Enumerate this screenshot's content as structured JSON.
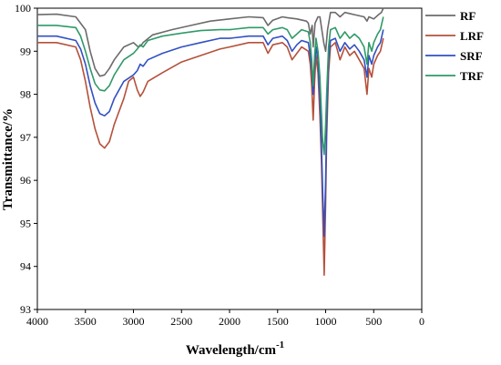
{
  "chart_data": {
    "type": "line",
    "title": "",
    "xlabel": "Wavelength/cm",
    "xlabel_superscript": "-1",
    "ylabel": "Transmittance/%",
    "xlim": [
      4000,
      0
    ],
    "ylim": [
      93,
      100
    ],
    "x_reversed": true,
    "x_ticks": [
      4000,
      3500,
      3000,
      2500,
      2000,
      1500,
      1000,
      500,
      0
    ],
    "y_ticks": [
      93,
      94,
      95,
      96,
      97,
      98,
      99,
      100
    ],
    "grid": false,
    "legend_position": "top-right",
    "series": [
      {
        "name": "RF",
        "color": "#6b6b6b",
        "points": [
          [
            4000,
            99.85
          ],
          [
            3800,
            99.86
          ],
          [
            3600,
            99.8
          ],
          [
            3500,
            99.5
          ],
          [
            3450,
            99.0
          ],
          [
            3400,
            98.6
          ],
          [
            3350,
            98.42
          ],
          [
            3300,
            98.45
          ],
          [
            3250,
            98.6
          ],
          [
            3200,
            98.8
          ],
          [
            3100,
            99.1
          ],
          [
            3000,
            99.2
          ],
          [
            2950,
            99.1
          ],
          [
            2920,
            99.13
          ],
          [
            2900,
            99.2
          ],
          [
            2800,
            99.38
          ],
          [
            2600,
            99.5
          ],
          [
            2400,
            99.6
          ],
          [
            2200,
            99.7
          ],
          [
            2000,
            99.75
          ],
          [
            1800,
            99.8
          ],
          [
            1650,
            99.78
          ],
          [
            1600,
            99.6
          ],
          [
            1550,
            99.72
          ],
          [
            1450,
            99.8
          ],
          [
            1400,
            99.78
          ],
          [
            1300,
            99.75
          ],
          [
            1200,
            99.7
          ],
          [
            1180,
            99.65
          ],
          [
            1160,
            99.4
          ],
          [
            1140,
            99.6
          ],
          [
            1130,
            99.1
          ],
          [
            1110,
            99.65
          ],
          [
            1080,
            99.8
          ],
          [
            1060,
            99.8
          ],
          [
            1040,
            99.5
          ],
          [
            1020,
            99.2
          ],
          [
            1000,
            99.0
          ],
          [
            980,
            99.5
          ],
          [
            950,
            99.9
          ],
          [
            900,
            99.9
          ],
          [
            850,
            99.8
          ],
          [
            800,
            99.9
          ],
          [
            700,
            99.85
          ],
          [
            600,
            99.8
          ],
          [
            570,
            99.7
          ],
          [
            550,
            99.8
          ],
          [
            500,
            99.75
          ],
          [
            450,
            99.85
          ],
          [
            420,
            99.9
          ],
          [
            400,
            100.0
          ]
        ]
      },
      {
        "name": "LRF",
        "color": "#b5503b",
        "points": [
          [
            4000,
            99.2
          ],
          [
            3800,
            99.2
          ],
          [
            3600,
            99.1
          ],
          [
            3550,
            98.8
          ],
          [
            3500,
            98.3
          ],
          [
            3450,
            97.7
          ],
          [
            3400,
            97.2
          ],
          [
            3350,
            96.85
          ],
          [
            3300,
            96.75
          ],
          [
            3250,
            96.9
          ],
          [
            3200,
            97.3
          ],
          [
            3100,
            97.9
          ],
          [
            3050,
            98.3
          ],
          [
            3000,
            98.4
          ],
          [
            2960,
            98.1
          ],
          [
            2930,
            97.95
          ],
          [
            2900,
            98.05
          ],
          [
            2850,
            98.3
          ],
          [
            2700,
            98.5
          ],
          [
            2500,
            98.75
          ],
          [
            2300,
            98.9
          ],
          [
            2100,
            99.05
          ],
          [
            2000,
            99.1
          ],
          [
            1800,
            99.2
          ],
          [
            1650,
            99.2
          ],
          [
            1600,
            98.95
          ],
          [
            1550,
            99.15
          ],
          [
            1450,
            99.2
          ],
          [
            1400,
            99.1
          ],
          [
            1350,
            98.8
          ],
          [
            1300,
            98.95
          ],
          [
            1250,
            99.1
          ],
          [
            1180,
            99.0
          ],
          [
            1160,
            98.7
          ],
          [
            1145,
            98.2
          ],
          [
            1130,
            97.4
          ],
          [
            1115,
            98.3
          ],
          [
            1100,
            98.9
          ],
          [
            1080,
            98.5
          ],
          [
            1060,
            97.5
          ],
          [
            1045,
            96.5
          ],
          [
            1030,
            95.2
          ],
          [
            1015,
            93.8
          ],
          [
            1000,
            95.5
          ],
          [
            990,
            97.0
          ],
          [
            970,
            98.5
          ],
          [
            950,
            99.1
          ],
          [
            900,
            99.2
          ],
          [
            850,
            98.8
          ],
          [
            800,
            99.1
          ],
          [
            750,
            98.9
          ],
          [
            700,
            99.0
          ],
          [
            650,
            98.8
          ],
          [
            600,
            98.6
          ],
          [
            570,
            98.0
          ],
          [
            550,
            98.6
          ],
          [
            520,
            98.4
          ],
          [
            500,
            98.7
          ],
          [
            460,
            98.9
          ],
          [
            430,
            99.0
          ],
          [
            400,
            99.3
          ]
        ]
      },
      {
        "name": "SRF",
        "color": "#3151c2",
        "points": [
          [
            4000,
            99.35
          ],
          [
            3800,
            99.35
          ],
          [
            3600,
            99.25
          ],
          [
            3550,
            99.05
          ],
          [
            3500,
            98.7
          ],
          [
            3450,
            98.2
          ],
          [
            3400,
            97.8
          ],
          [
            3350,
            97.55
          ],
          [
            3300,
            97.5
          ],
          [
            3250,
            97.6
          ],
          [
            3200,
            97.9
          ],
          [
            3100,
            98.3
          ],
          [
            3000,
            98.45
          ],
          [
            2960,
            98.55
          ],
          [
            2930,
            98.7
          ],
          [
            2900,
            98.65
          ],
          [
            2850,
            98.8
          ],
          [
            2700,
            98.95
          ],
          [
            2500,
            99.1
          ],
          [
            2300,
            99.2
          ],
          [
            2100,
            99.3
          ],
          [
            2000,
            99.3
          ],
          [
            1800,
            99.35
          ],
          [
            1650,
            99.35
          ],
          [
            1600,
            99.15
          ],
          [
            1550,
            99.3
          ],
          [
            1450,
            99.35
          ],
          [
            1400,
            99.25
          ],
          [
            1350,
            99.0
          ],
          [
            1300,
            99.15
          ],
          [
            1250,
            99.25
          ],
          [
            1180,
            99.2
          ],
          [
            1160,
            98.9
          ],
          [
            1145,
            98.6
          ],
          [
            1130,
            98.0
          ],
          [
            1115,
            98.7
          ],
          [
            1100,
            99.1
          ],
          [
            1080,
            98.8
          ],
          [
            1060,
            97.9
          ],
          [
            1045,
            96.9
          ],
          [
            1030,
            95.7
          ],
          [
            1015,
            94.7
          ],
          [
            1000,
            96.0
          ],
          [
            990,
            97.4
          ],
          [
            970,
            98.8
          ],
          [
            950,
            99.25
          ],
          [
            900,
            99.3
          ],
          [
            850,
            99.0
          ],
          [
            800,
            99.2
          ],
          [
            750,
            99.05
          ],
          [
            700,
            99.15
          ],
          [
            650,
            99.0
          ],
          [
            600,
            98.8
          ],
          [
            570,
            98.4
          ],
          [
            550,
            98.9
          ],
          [
            520,
            98.7
          ],
          [
            500,
            98.9
          ],
          [
            460,
            99.1
          ],
          [
            430,
            99.2
          ],
          [
            400,
            99.5
          ]
        ]
      },
      {
        "name": "TRF",
        "color": "#2f9a68",
        "points": [
          [
            4000,
            99.6
          ],
          [
            3800,
            99.6
          ],
          [
            3600,
            99.55
          ],
          [
            3550,
            99.35
          ],
          [
            3500,
            99.0
          ],
          [
            3450,
            98.6
          ],
          [
            3400,
            98.25
          ],
          [
            3350,
            98.1
          ],
          [
            3300,
            98.08
          ],
          [
            3250,
            98.2
          ],
          [
            3200,
            98.45
          ],
          [
            3100,
            98.8
          ],
          [
            3000,
            98.95
          ],
          [
            2960,
            99.05
          ],
          [
            2930,
            99.15
          ],
          [
            2900,
            99.1
          ],
          [
            2850,
            99.25
          ],
          [
            2700,
            99.35
          ],
          [
            2500,
            99.42
          ],
          [
            2300,
            99.48
          ],
          [
            2100,
            99.5
          ],
          [
            2000,
            99.5
          ],
          [
            1800,
            99.55
          ],
          [
            1650,
            99.55
          ],
          [
            1600,
            99.4
          ],
          [
            1550,
            99.5
          ],
          [
            1450,
            99.55
          ],
          [
            1400,
            99.5
          ],
          [
            1350,
            99.3
          ],
          [
            1300,
            99.4
          ],
          [
            1250,
            99.5
          ],
          [
            1180,
            99.45
          ],
          [
            1160,
            99.2
          ],
          [
            1145,
            98.8
          ],
          [
            1130,
            98.2
          ],
          [
            1115,
            98.9
          ],
          [
            1100,
            99.3
          ],
          [
            1080,
            99.0
          ],
          [
            1060,
            98.4
          ],
          [
            1045,
            97.6
          ],
          [
            1030,
            96.9
          ],
          [
            1015,
            96.6
          ],
          [
            1000,
            97.3
          ],
          [
            990,
            98.0
          ],
          [
            970,
            99.1
          ],
          [
            950,
            99.5
          ],
          [
            900,
            99.55
          ],
          [
            850,
            99.3
          ],
          [
            800,
            99.45
          ],
          [
            750,
            99.3
          ],
          [
            700,
            99.4
          ],
          [
            650,
            99.3
          ],
          [
            600,
            99.1
          ],
          [
            570,
            98.7
          ],
          [
            550,
            99.2
          ],
          [
            520,
            99.0
          ],
          [
            500,
            99.2
          ],
          [
            460,
            99.4
          ],
          [
            430,
            99.5
          ],
          [
            400,
            99.8
          ]
        ]
      }
    ]
  }
}
